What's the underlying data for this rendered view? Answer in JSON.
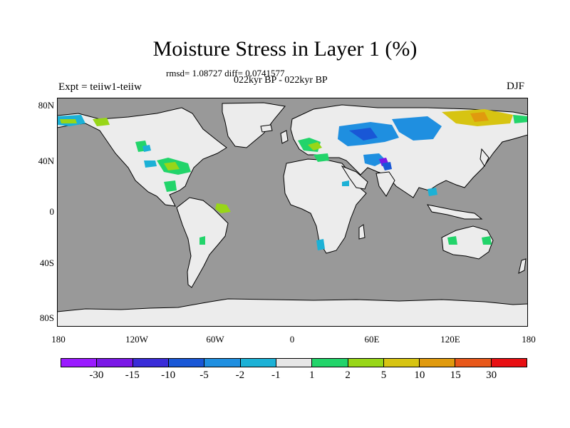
{
  "title": "Moisture Stress in Layer 1 (%)",
  "stats": "rmsd= 1.08727 diff= 0.0741577",
  "period": "022kyr BP - 022kyr BP",
  "expt": "Expt = teiiw1-teiiw",
  "season": "DJF",
  "colors": {
    "ocean": "#999999",
    "land": "#ececec",
    "ice": "#ececec",
    "coast": "#000000"
  },
  "y_axis_labels": [
    "80N",
    "40N",
    "0",
    "40S",
    "80S"
  ],
  "x_axis_labels": [
    "180",
    "120W",
    "60W",
    "0",
    "60E",
    "120E",
    "180"
  ],
  "colorbar": {
    "colors": [
      "#9a1aff",
      "#7a18e6",
      "#3a2cd8",
      "#1957d6",
      "#1f8fe0",
      "#1cb1d6",
      "#e6e6e6",
      "#22d46a",
      "#98d618",
      "#d7c412",
      "#e09a0e",
      "#e8581a",
      "#e80f12"
    ],
    "labels": [
      "-30",
      "-15",
      "-10",
      "-5",
      "-2",
      "-1",
      "1",
      "2",
      "5",
      "10",
      "15",
      "30"
    ]
  }
}
